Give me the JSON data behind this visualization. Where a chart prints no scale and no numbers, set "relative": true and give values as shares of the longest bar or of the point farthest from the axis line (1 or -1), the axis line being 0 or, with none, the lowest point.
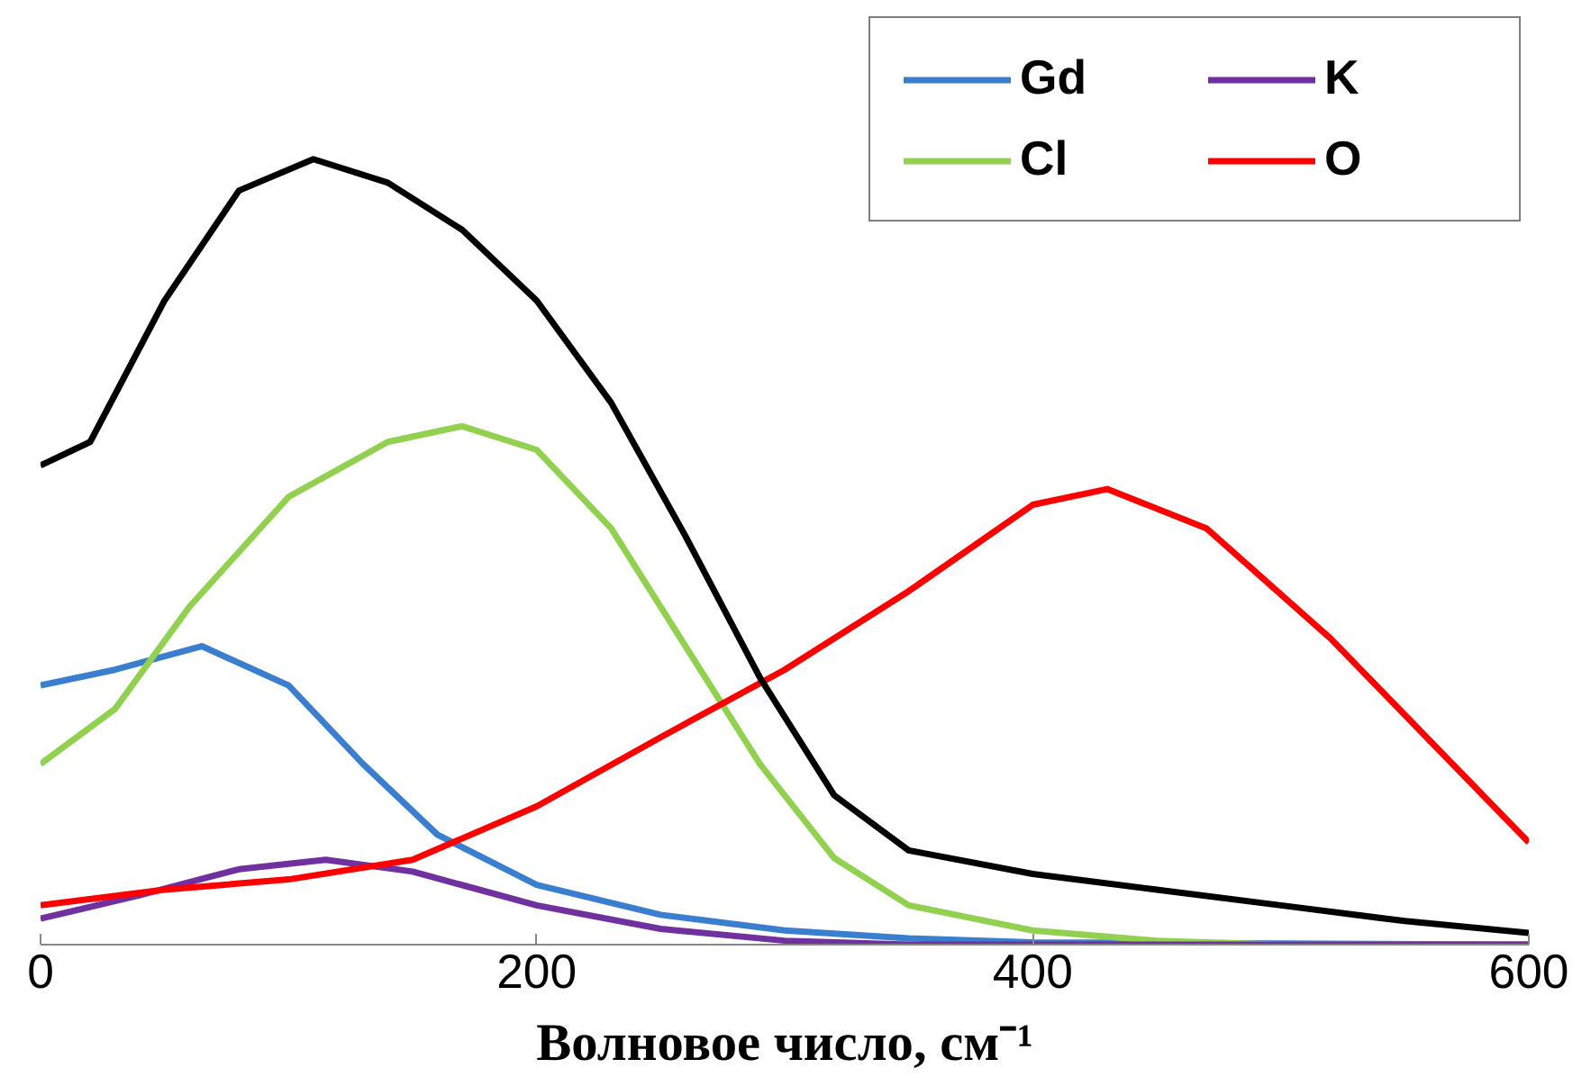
{
  "chart_data": {
    "type": "line",
    "relative": true,
    "xlabel": "Волновое число, см⁻¹",
    "xlim": [
      0,
      600
    ],
    "xticks": [
      0,
      200,
      400,
      600
    ],
    "grid": false,
    "legend": "top right",
    "marker": "none",
    "line_style": "solid",
    "series": [
      {
        "name": "Gd",
        "color": "#3a7fcf",
        "x": [
          0,
          30,
          65,
          100,
          130,
          160,
          200,
          250,
          300,
          350,
          400,
          600
        ],
        "values": [
          0.33,
          0.35,
          0.38,
          0.33,
          0.23,
          0.14,
          0.076,
          0.038,
          0.018,
          0.008,
          0.003,
          0
        ]
      },
      {
        "name": "Cl",
        "color": "#92d050",
        "x": [
          0,
          30,
          60,
          100,
          140,
          170,
          200,
          230,
          260,
          290,
          320,
          350,
          400,
          450,
          500,
          600
        ],
        "values": [
          0.23,
          0.3,
          0.43,
          0.57,
          0.64,
          0.66,
          0.63,
          0.53,
          0.38,
          0.23,
          0.11,
          0.05,
          0.018,
          0.005,
          0,
          0
        ]
      },
      {
        "name": "K",
        "color": "#7030a0",
        "x": [
          0,
          40,
          80,
          115,
          150,
          200,
          250,
          300,
          350,
          600
        ],
        "values": [
          0.033,
          0.063,
          0.096,
          0.108,
          0.093,
          0.05,
          0.02,
          0.005,
          0,
          0
        ]
      },
      {
        "name": "O",
        "color": "#ff0000",
        "x": [
          0,
          50,
          100,
          150,
          200,
          250,
          300,
          350,
          400,
          430,
          470,
          520,
          560,
          600
        ],
        "values": [
          0.05,
          0.07,
          0.083,
          0.108,
          0.176,
          0.264,
          0.35,
          0.45,
          0.56,
          0.58,
          0.53,
          0.39,
          0.26,
          0.13
        ]
      },
      {
        "color": "#000000",
        "x": [
          0,
          20,
          50,
          80,
          110,
          140,
          170,
          200,
          230,
          260,
          290,
          320,
          350,
          400,
          450,
          500,
          550,
          600
        ],
        "values": [
          0.61,
          0.64,
          0.82,
          0.96,
          1.0,
          0.97,
          0.91,
          0.82,
          0.69,
          0.52,
          0.34,
          0.19,
          0.12,
          0.09,
          0.07,
          0.05,
          0.03,
          0.015
        ]
      }
    ]
  }
}
